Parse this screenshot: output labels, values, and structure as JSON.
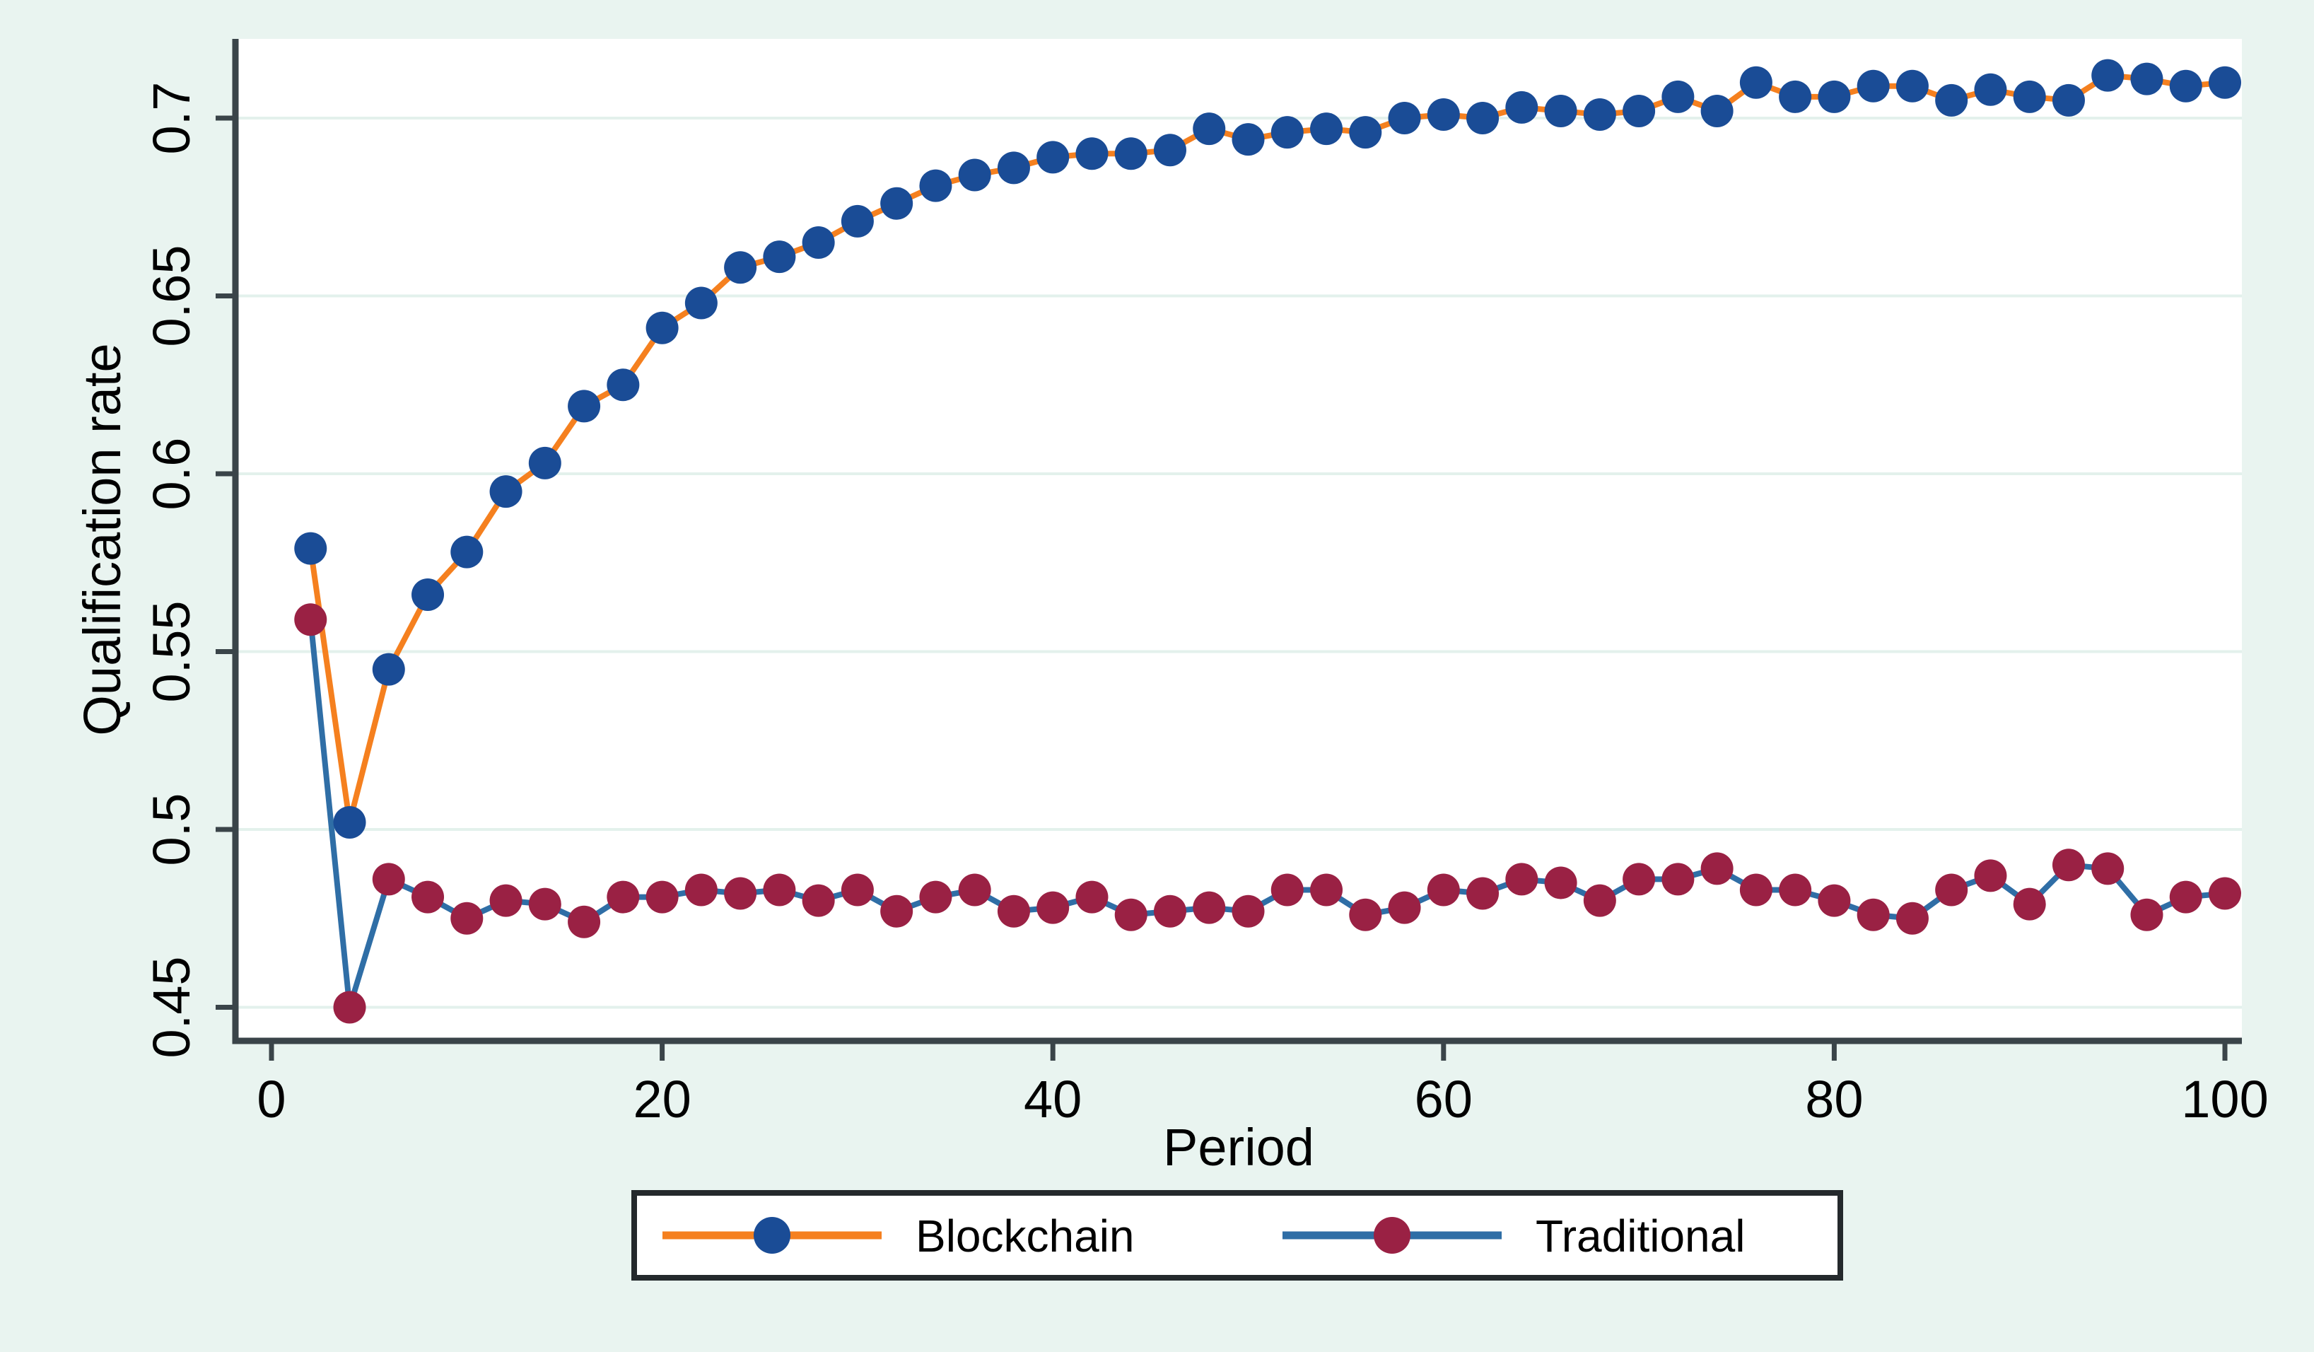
{
  "chart_data": {
    "type": "line",
    "title": "",
    "xlabel": "Period",
    "ylabel": "Qualification rate",
    "x": [
      2,
      4,
      6,
      8,
      10,
      12,
      14,
      16,
      18,
      20,
      22,
      24,
      26,
      28,
      30,
      32,
      34,
      36,
      38,
      40,
      42,
      44,
      46,
      48,
      50,
      52,
      54,
      56,
      58,
      60,
      62,
      64,
      66,
      68,
      70,
      72,
      74,
      76,
      78,
      80,
      82,
      84,
      86,
      88,
      90,
      92,
      94,
      96,
      98,
      100
    ],
    "series": [
      {
        "name": "Blockchain",
        "marker_color": "#1a4c96",
        "line_color": "#f5801f",
        "values": [
          0.579,
          0.502,
          0.545,
          0.566,
          0.578,
          0.595,
          0.603,
          0.619,
          0.625,
          0.641,
          0.648,
          0.658,
          0.661,
          0.665,
          0.671,
          0.676,
          0.681,
          0.684,
          0.686,
          0.689,
          0.69,
          0.69,
          0.691,
          0.697,
          0.694,
          0.696,
          0.697,
          0.696,
          0.7,
          0.701,
          0.7,
          0.703,
          0.702,
          0.701,
          0.702,
          0.706,
          0.702,
          0.71,
          0.706,
          0.706,
          0.709,
          0.709,
          0.705,
          0.708,
          0.706,
          0.705,
          0.712,
          0.711,
          0.709,
          0.71
        ]
      },
      {
        "name": "Traditional",
        "marker_color": "#9a2144",
        "line_color": "#2f6ea6",
        "values": [
          0.559,
          0.45,
          0.486,
          0.481,
          0.475,
          0.48,
          0.479,
          0.474,
          0.481,
          0.481,
          0.483,
          0.482,
          0.483,
          0.48,
          0.483,
          0.477,
          0.481,
          0.483,
          0.477,
          0.478,
          0.481,
          0.476,
          0.477,
          0.478,
          0.477,
          0.483,
          0.483,
          0.476,
          0.478,
          0.483,
          0.482,
          0.486,
          0.485,
          0.48,
          0.486,
          0.486,
          0.489,
          0.483,
          0.483,
          0.48,
          0.476,
          0.475,
          0.483,
          0.487,
          0.479,
          0.49,
          0.489,
          0.476,
          0.481,
          0.482
        ]
      }
    ],
    "xticks": [
      {
        "value": 0,
        "label": "0"
      },
      {
        "value": 20,
        "label": "20"
      },
      {
        "value": 40,
        "label": "40"
      },
      {
        "value": 60,
        "label": "60"
      },
      {
        "value": 80,
        "label": "80"
      },
      {
        "value": 100,
        "label": "100"
      }
    ],
    "yticks": [
      {
        "value": 0.45,
        "label": "0.45"
      },
      {
        "value": 0.5,
        "label": "0.5"
      },
      {
        "value": 0.55,
        "label": "0.55"
      },
      {
        "value": 0.6,
        "label": "0.6"
      },
      {
        "value": 0.65,
        "label": "0.65"
      },
      {
        "value": 0.7,
        "label": "0.7"
      }
    ],
    "xlim": [
      -1.85,
      100.9
    ],
    "ylim": [
      0.4406,
      0.7223
    ],
    "grid": "horizontal",
    "legend_position": "bottom-center",
    "colors": {
      "background": "#e9f4f0",
      "plot_background": "#ffffff",
      "gridline": "#e3f1ec",
      "axis": "#3a4449",
      "text": "#000000",
      "legend_border": "#24292c",
      "legend_background": "#ffffff"
    }
  }
}
